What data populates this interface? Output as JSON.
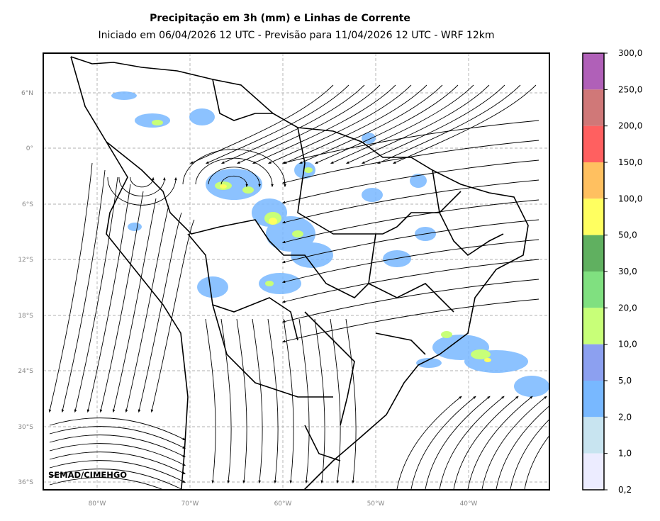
{
  "title": "Precipitação em 3h (mm) e Linhas de Corrente",
  "subtitle": "Iniciado em 06/04/2026 12 UTC - Previsão para 11/04/2026 12 UTC - WRF 12km",
  "credit": "SEMAD/CIMEHGO",
  "lat_labels": [
    "6°N",
    "0°",
    "6°S",
    "12°S",
    "18°S",
    "24°S",
    "30°S",
    "36°S"
  ],
  "lon_labels": [
    "80°W",
    "70°W",
    "60°W",
    "50°W",
    "40°W"
  ],
  "colorbar": {
    "labels": [
      "300,0",
      "250,0",
      "200,0",
      "150,0",
      "100,0",
      "50,0",
      "30,0",
      "20,0",
      "10,0",
      "5,0",
      "2,0",
      "1,0",
      "0,2"
    ],
    "colors": [
      "#b060b8",
      "#d07878",
      "#ff6060",
      "#ffc060",
      "#ffff60",
      "#60b060",
      "#80e080",
      "#c8ff78",
      "#8ca0f0",
      "#78b8ff",
      "#c8e4f0",
      "#ececff"
    ]
  }
}
